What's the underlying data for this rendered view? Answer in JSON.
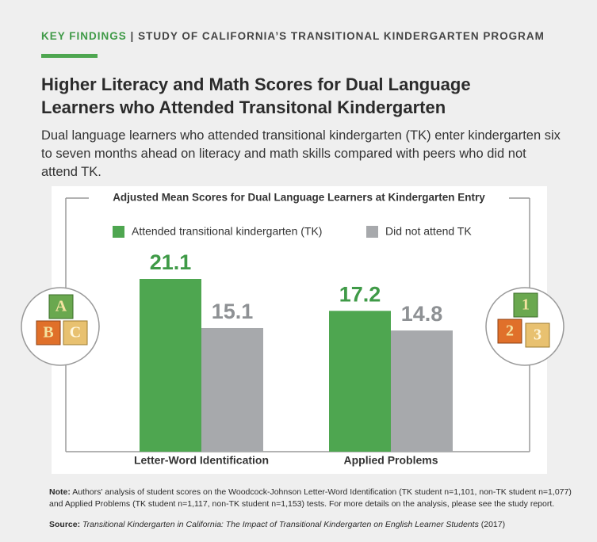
{
  "header": {
    "label": "KEY FINDINGS",
    "separator": "|",
    "subtitle": "STUDY OF CALIFORNIA’S TRANSITIONAL KINDERGARTEN PROGRAM"
  },
  "title": "Higher Literacy and Math Scores for Dual Language Learners who Attended Transitonal Kindergarten",
  "description": "Dual language learners who attended transitional kindergarten (TK) enter kindergarten six to seven months ahead on literacy and math skills compared with peers who did not attend TK.",
  "chart_data": {
    "type": "bar",
    "title": "Adjusted Mean Scores for Dual Language Learners at Kindergarten Entry",
    "categories": [
      "Letter-Word Identification",
      "Applied Problems"
    ],
    "series": [
      {
        "name": "Attended transitional kindergarten (TK)",
        "color": "#4ea650",
        "values": [
          21.1,
          17.2
        ]
      },
      {
        "name": "Did not attend TK",
        "color": "#a7a9ac",
        "values": [
          15.1,
          14.8
        ]
      }
    ]
  },
  "blocks": {
    "left": [
      "A",
      "B",
      "C"
    ],
    "right": [
      "1",
      "2",
      "3"
    ]
  },
  "note": {
    "label": "Note:",
    "text": "Authors' analysis of student scores on the Woodcock-Johnson Letter-Word Identification (TK student n=1,101, non-TK student n=1,077) and Applied Problems (TK student n=1,117, non-TK student n=1,153) tests. For more details on the analysis, please see the study report."
  },
  "source": {
    "label": "Source:",
    "title": "Transitional Kindergarten in California: The Impact of Transitional Kindergarten on English Learner Students",
    "year": "(2017)"
  }
}
